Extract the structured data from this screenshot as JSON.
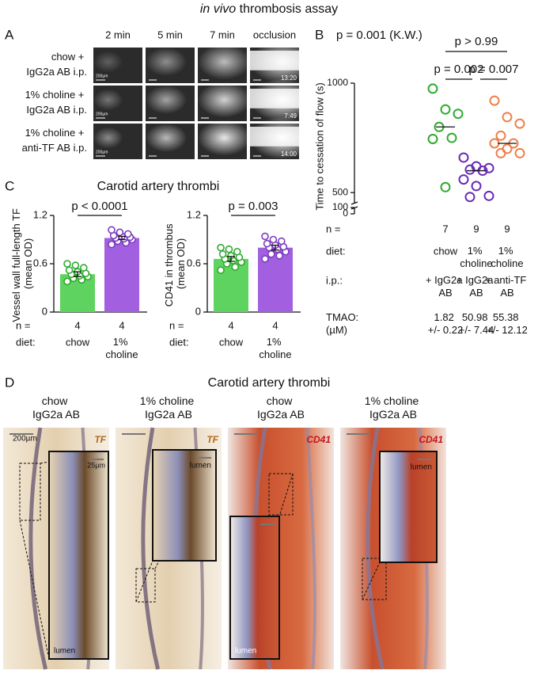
{
  "title_italic": "in vivo",
  "title_rest": "thrombosis assay",
  "panel_a": {
    "letter": "A",
    "columns": [
      "2 min",
      "5 min",
      "7 min",
      "occlusion"
    ],
    "scale_bar": "200µm",
    "rows": [
      {
        "label": "chow + IgG2a AB i.p.",
        "time": "13:20"
      },
      {
        "label": "1% choline + IgG2a AB i.p.",
        "time": "7:49"
      },
      {
        "label": "1% choline + anti-TF AB i.p.",
        "time": "14:00"
      }
    ]
  },
  "chart_data": [
    {
      "type": "scatter",
      "letter": "B",
      "ylabel": "Time to cessation of flow (s)",
      "ylim": [
        0,
        1000
      ],
      "yticks": [
        0,
        100,
        500,
        1000
      ],
      "axis_break": [
        100,
        450
      ],
      "categories": [
        "chow",
        "1% choline",
        "1% choline"
      ],
      "series": [
        {
          "color": "#2eaa2e",
          "values": [
            975,
            880,
            860,
            800,
            750,
            745,
            525
          ]
        },
        {
          "color": "#6a2bb5",
          "values": [
            660,
            620,
            612,
            605,
            600,
            560,
            530,
            485,
            480
          ]
        },
        {
          "color": "#ef7f4a",
          "values": [
            920,
            845,
            815,
            760,
            725,
            725,
            700,
            680,
            680
          ]
        }
      ],
      "kw": "p = 0.001 (K.W.)",
      "brackets": [
        "p > 0.99",
        "p = 0.002",
        "p = 0.007"
      ],
      "row_labels": [
        "n =",
        "diet:",
        "i.p.:",
        "TMAO: (µM)"
      ],
      "n": [
        7,
        9,
        9
      ],
      "ip": [
        "+ IgG2a AB",
        "+ IgG2a AB",
        "+ anti-TF AB"
      ],
      "tmao": [
        "1.82 +/- 0.22",
        "50.98 +/- 7.44",
        "55.38 +/- 12.12"
      ]
    },
    {
      "type": "bar",
      "ylabel": "Vessel wall full-length TF (mean OD)",
      "ylim": [
        0,
        1.2
      ],
      "yticks": [
        0,
        0.6,
        1.2
      ],
      "categories": [
        "chow",
        "1% choline"
      ],
      "values": [
        0.47,
        0.92
      ],
      "errors": [
        0.03,
        0.02
      ],
      "colors": [
        "#5fd35f",
        "#a260e0"
      ],
      "point_colors": [
        "#2eaa2e",
        "#7b3bc0"
      ],
      "points": [
        [
          0.38,
          0.4,
          0.42,
          0.44,
          0.45,
          0.47,
          0.48,
          0.5,
          0.52,
          0.55,
          0.58,
          0.6
        ],
        [
          0.84,
          0.86,
          0.88,
          0.9,
          0.91,
          0.92,
          0.93,
          0.94,
          0.95,
          0.97,
          0.99,
          1.02
        ]
      ],
      "p_label": "p < 0.0001",
      "row_labels": [
        "n =",
        "diet:"
      ],
      "n": [
        4,
        4
      ]
    },
    {
      "type": "bar",
      "ylabel": "CD41 in thrombus (mean OD)",
      "ylim": [
        0,
        1.2
      ],
      "yticks": [
        0,
        0.6,
        1.2
      ],
      "categories": [
        "chow",
        "1% choline"
      ],
      "values": [
        0.66,
        0.8
      ],
      "errors": [
        0.03,
        0.03
      ],
      "colors": [
        "#5fd35f",
        "#a260e0"
      ],
      "point_colors": [
        "#2eaa2e",
        "#7b3bc0"
      ],
      "points": [
        [
          0.52,
          0.56,
          0.6,
          0.62,
          0.64,
          0.66,
          0.68,
          0.7,
          0.72,
          0.75,
          0.78,
          0.8
        ],
        [
          0.66,
          0.7,
          0.72,
          0.75,
          0.78,
          0.8,
          0.81,
          0.83,
          0.85,
          0.88,
          0.9,
          0.94
        ]
      ],
      "p_label": "p = 0.003",
      "row_labels": [
        "n =",
        "diet:"
      ],
      "n": [
        4,
        4
      ]
    }
  ],
  "panel_c": {
    "letter": "C",
    "title": "Carotid artery thrombi"
  },
  "panel_d": {
    "letter": "D",
    "title": "Carotid artery thrombi",
    "columns": [
      {
        "label": "chow IgG2a AB",
        "stain": "TF"
      },
      {
        "label": "1% choline IgG2a AB",
        "stain": "TF"
      },
      {
        "label": "chow IgG2a AB",
        "stain": "CD41"
      },
      {
        "label": "1% choline IgG2a AB",
        "stain": "CD41"
      }
    ],
    "scale_bars": [
      "200µm",
      "25µm"
    ],
    "lumen": "lumen"
  }
}
